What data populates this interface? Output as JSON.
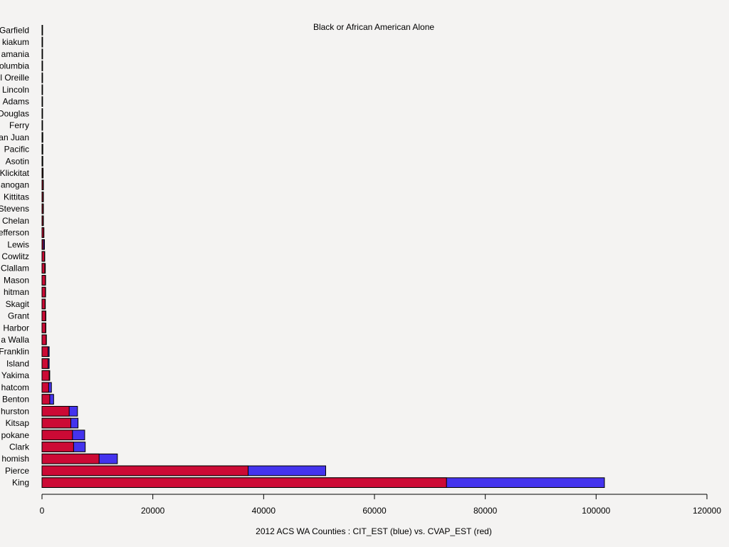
{
  "chart_data": {
    "type": "bar",
    "orientation": "horizontal",
    "title": "Black or African American Alone",
    "xlabel": "2012 ACS WA Counties : CIT_EST (blue) vs. CVAP_EST (red)",
    "ylabel": "",
    "xlim": [
      0,
      120000
    ],
    "xticks": [
      0,
      20000,
      40000,
      60000,
      80000,
      100000,
      120000
    ],
    "xtick_labels": [
      "0",
      "20000",
      "40000",
      "60000",
      "80000",
      "100000",
      "120000"
    ],
    "categories": [
      "King",
      "Pierce",
      "Snohomish",
      "Clark",
      "Spokane",
      "Kitsap",
      "Thurston",
      "Benton",
      "Whatcom",
      "Yakima",
      "Island",
      "Franklin",
      "Walla Walla",
      "Grays Harbor",
      "Grant",
      "Skagit",
      "Whitman",
      "Mason",
      "Clallam",
      "Cowlitz",
      "Lewis",
      "Jefferson",
      "Chelan",
      "Stevens",
      "Kittitas",
      "Okanogan",
      "Klickitat",
      "Asotin",
      "Pacific",
      "San Juan",
      "Ferry",
      "Douglas",
      "Adams",
      "Lincoln",
      "Pend Oreille",
      "Columbia",
      "Skamania",
      "Wahkiakum",
      "Garfield"
    ],
    "category_labels": [
      "King",
      "Pierce",
      "homish",
      "Clark",
      "pokane",
      "Kitsap",
      "hurston",
      "Benton",
      "hatcom",
      "Yakima",
      "Island",
      "Franklin",
      "a Walla",
      "Harbor",
      "Grant",
      "Skagit",
      "hitman",
      "Mason",
      "Clallam",
      "Cowlitz",
      "Lewis",
      "efferson",
      "Chelan",
      "Stevens",
      "Kittitas",
      "anogan",
      "Klickitat",
      "Asotin",
      "Pacific",
      "an Juan",
      "Ferry",
      "Douglas",
      "Adams",
      "Lincoln",
      "l Oreille",
      "olumbia",
      "amania",
      "kiakum",
      "Garfield"
    ],
    "series": [
      {
        "name": "CIT_EST",
        "color": "#4433ee",
        "values": [
          101500,
          51200,
          13600,
          7800,
          7700,
          6500,
          6400,
          2100,
          1700,
          1400,
          1300,
          1300,
          800,
          700,
          700,
          600,
          650,
          650,
          600,
          500,
          450,
          350,
          250,
          250,
          250,
          250,
          200,
          150,
          150,
          150,
          100,
          100,
          100,
          80,
          80,
          60,
          60,
          60,
          50
        ]
      },
      {
        "name": "CVAP_EST",
        "color": "#cc0a35",
        "values": [
          73000,
          37200,
          10300,
          5700,
          5500,
          5200,
          4900,
          1400,
          1200,
          1300,
          1100,
          1100,
          750,
          650,
          650,
          550,
          600,
          600,
          500,
          450,
          250,
          300,
          200,
          200,
          200,
          200,
          150,
          120,
          120,
          120,
          80,
          80,
          80,
          60,
          60,
          50,
          50,
          50,
          40
        ]
      }
    ],
    "grid": false,
    "legend": "none"
  }
}
